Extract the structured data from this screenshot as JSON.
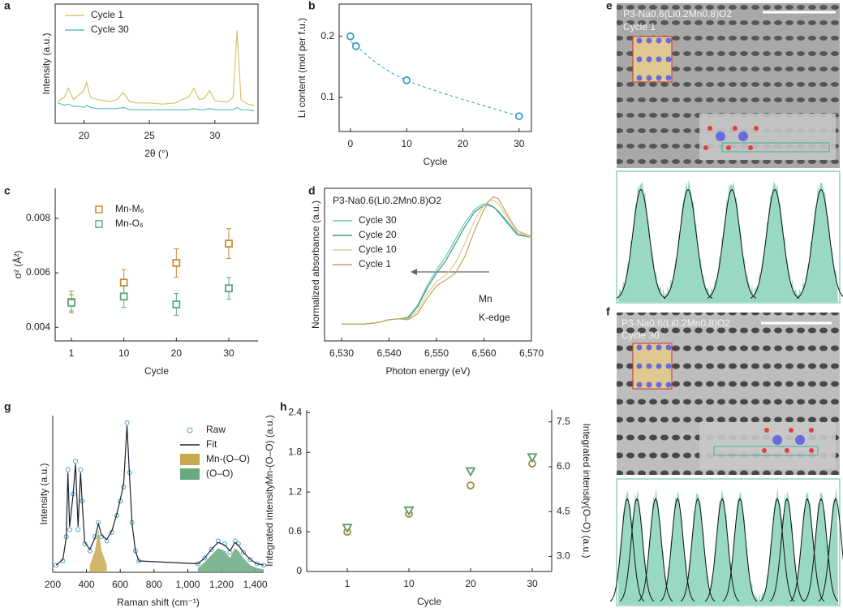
{
  "chart_data": [
    {
      "panel": "a",
      "type": "line",
      "xlabel": "2θ (°)",
      "ylabel": "Intensity (a.u.)",
      "legend": "upper left",
      "x": [
        18,
        18.5,
        18.8,
        19.2,
        19.6,
        20.0,
        20.2,
        20.5,
        21,
        21.5,
        22,
        22.5,
        23,
        23.5,
        24,
        25,
        26,
        27,
        27.5,
        28,
        28.4,
        28.8,
        29.2,
        29.6,
        30,
        30.5,
        31,
        31.4,
        31.7,
        32,
        32.5,
        33
      ],
      "xlim": [
        17.8,
        33.3
      ],
      "xticks": [
        20,
        25,
        30
      ],
      "ylim": [
        0,
        10.5
      ],
      "series": [
        {
          "name": "Cycle 1",
          "color": "#d8c36a",
          "style": "line",
          "values": [
            1.9,
            2.3,
            3.1,
            2.1,
            2.5,
            2.9,
            3.6,
            2.3,
            2.1,
            2.0,
            1.9,
            2.1,
            2.7,
            1.9,
            1.8,
            1.8,
            1.7,
            1.8,
            2.1,
            2.3,
            3.1,
            2.1,
            2.2,
            2.9,
            2.0,
            1.9,
            1.9,
            2.3,
            8.2,
            2.1,
            1.7,
            1.6
          ]
        },
        {
          "name": "Cycle 30",
          "color": "#5cc0b4",
          "style": "line",
          "values": [
            1.8,
            1.6,
            1.7,
            1.5,
            1.5,
            1.4,
            1.6,
            1.4,
            1.3,
            1.3,
            1.3,
            1.3,
            1.4,
            1.2,
            1.2,
            1.2,
            1.2,
            1.2,
            1.2,
            1.2,
            1.3,
            1.2,
            1.2,
            1.3,
            1.2,
            1.2,
            1.2,
            1.2,
            1.4,
            1.2,
            1.2,
            1.1
          ]
        }
      ]
    },
    {
      "panel": "b",
      "type": "scatter",
      "xlabel": "Cycle",
      "ylabel": "Li content (mol per f.u.)",
      "trendline": "dashed",
      "x": [
        0,
        1,
        10,
        30
      ],
      "xlim": [
        -2,
        32.2
      ],
      "xticks": [
        0,
        10,
        20,
        30
      ],
      "ylim": [
        0.044,
        0.253
      ],
      "yticks": [
        0.1,
        0.2
      ],
      "series": [
        {
          "color": "#3aa0c8",
          "style": "markers",
          "marker": "circle",
          "values": [
            0.2,
            0.184,
            0.128,
            0.069
          ]
        }
      ]
    },
    {
      "panel": "c",
      "type": "scatter",
      "xlabel": "Cycle",
      "ylabel": "σ² (Å²)",
      "legend": "upper left",
      "categories": [
        "1",
        "10",
        "20",
        "30"
      ],
      "ylim": [
        0.0035,
        0.0091
      ],
      "yticks": [
        0.004,
        0.006,
        0.008
      ],
      "series": [
        {
          "name": "Mn-M₆",
          "color": "#d08a30",
          "style": "markers",
          "marker": "square",
          "values": [
            0.00493,
            0.00564,
            0.00636,
            0.00707
          ],
          "errors": [
            0.0004,
            0.00048,
            0.00052,
            0.00055
          ]
        },
        {
          "name": "Mn-O₆",
          "color": "#5aaa78",
          "style": "markers",
          "marker": "square",
          "values": [
            0.0049,
            0.00513,
            0.00484,
            0.00543
          ],
          "errors": [
            0.0003,
            0.0004,
            0.0004,
            0.0004
          ]
        }
      ]
    },
    {
      "panel": "d",
      "type": "line",
      "title": "P3-Na0.6(Li0.2Mn0.8)O2",
      "xlabel": "Photon energy (eV)",
      "ylabel": "Normalized absorbance (a.u.)",
      "legend": "upper left",
      "annotations": [
        "Mn",
        "K-edge"
      ],
      "x": [
        6530,
        6535,
        6538,
        6540,
        6542,
        6544,
        6546,
        6548,
        6550,
        6552,
        6554,
        6556,
        6558,
        6560,
        6561,
        6562,
        6563,
        6565,
        6567,
        6570
      ],
      "xlim": [
        6526.4,
        6570
      ],
      "xticks": [
        {
          "value": 6530,
          "label": "6,530"
        },
        {
          "value": 6540,
          "label": "6,540"
        },
        {
          "value": 6550,
          "label": "6,550"
        },
        {
          "value": 6560,
          "label": "6,560"
        },
        {
          "value": 6570,
          "label": "6,570"
        }
      ],
      "ylim": [
        -0.2,
        1.6
      ],
      "series": [
        {
          "name": "Cycle 30",
          "color": "#6cc8c0",
          "style": "line",
          "values": [
            0,
            0,
            0.02,
            0.05,
            0.06,
            0.08,
            0.22,
            0.45,
            0.64,
            0.8,
            1.0,
            1.2,
            1.35,
            1.42,
            1.41,
            1.38,
            1.32,
            1.18,
            1.05,
            1.02
          ]
        },
        {
          "name": "Cycle 20",
          "color": "#3a9a7a",
          "style": "line",
          "values": [
            0,
            0,
            0.02,
            0.05,
            0.06,
            0.07,
            0.2,
            0.42,
            0.6,
            0.75,
            0.95,
            1.15,
            1.32,
            1.4,
            1.4,
            1.38,
            1.33,
            1.2,
            1.06,
            1.02
          ]
        },
        {
          "name": "Cycle 10",
          "color": "#e2cc96",
          "style": "line",
          "values": [
            0,
            0,
            0.02,
            0.05,
            0.06,
            0.06,
            0.15,
            0.35,
            0.5,
            0.58,
            0.72,
            0.95,
            1.22,
            1.4,
            1.45,
            1.46,
            1.42,
            1.25,
            1.08,
            1.02
          ]
        },
        {
          "name": "Cycle 1",
          "color": "#c8a060",
          "style": "line",
          "values": [
            0,
            0,
            0.02,
            0.05,
            0.06,
            0.05,
            0.12,
            0.3,
            0.45,
            0.52,
            0.6,
            0.8,
            1.1,
            1.35,
            1.45,
            1.5,
            1.48,
            1.28,
            1.1,
            1.03
          ]
        }
      ]
    },
    {
      "panel": "g",
      "type": "line",
      "xlabel": "Raman shift (cm⁻¹)",
      "ylabel": "Intensity (a.u.)",
      "legend": "upper right",
      "x": [
        220,
        260,
        280,
        290,
        300,
        320,
        335,
        350,
        365,
        375,
        390,
        420,
        450,
        470,
        490,
        520,
        550,
        580,
        600,
        620,
        640,
        655,
        670,
        690,
        710,
        1060,
        1100,
        1140,
        1180,
        1220,
        1250,
        1280,
        1300,
        1330,
        1370,
        1410,
        1450
      ],
      "xlim": [
        200,
        1450
      ],
      "xticks": [
        200,
        400,
        600,
        800,
        {
          "value": 1000,
          "label": "1,000"
        },
        {
          "value": 1200,
          "label": "1,200"
        },
        {
          "value": 1400,
          "label": "1,400"
        }
      ],
      "ylim": [
        0,
        1.1
      ],
      "series": [
        {
          "name": "Raw",
          "color": "#4aa0c8",
          "style": "markers",
          "marker": "circle",
          "values": [
            0.05,
            0.08,
            0.25,
            0.72,
            0.3,
            0.55,
            0.78,
            0.3,
            0.72,
            0.5,
            0.2,
            0.15,
            0.25,
            0.35,
            0.25,
            0.22,
            0.28,
            0.4,
            0.5,
            0.6,
            1.05,
            0.7,
            0.35,
            0.15,
            0.08,
            0.06,
            0.1,
            0.16,
            0.22,
            0.2,
            0.14,
            0.22,
            0.2,
            0.14,
            0.09,
            0.06,
            0.05
          ]
        },
        {
          "name": "Fit",
          "color": "#1a2030",
          "style": "line",
          "values": [
            0.05,
            0.09,
            0.24,
            0.7,
            0.32,
            0.54,
            0.76,
            0.32,
            0.7,
            0.48,
            0.21,
            0.16,
            0.24,
            0.34,
            0.26,
            0.23,
            0.29,
            0.41,
            0.51,
            0.62,
            1.03,
            0.68,
            0.34,
            0.15,
            0.08,
            0.06,
            0.1,
            0.16,
            0.21,
            0.19,
            0.15,
            0.21,
            0.19,
            0.14,
            0.09,
            0.06,
            0.05
          ]
        },
        {
          "name": "Mn-(O–O)",
          "color": "#c8a850",
          "style": "area",
          "values": [
            null,
            null,
            null,
            null,
            null,
            null,
            null,
            null,
            null,
            null,
            null,
            0.05,
            0.15,
            0.3,
            0.15,
            0.05,
            null,
            null,
            null,
            null,
            null,
            null,
            null,
            null,
            null,
            null,
            null,
            null,
            null,
            null,
            null,
            null,
            null,
            null,
            null,
            null,
            null
          ]
        },
        {
          "name": "(O–O)",
          "color": "#6aaa80",
          "style": "area",
          "values": [
            null,
            null,
            null,
            null,
            null,
            null,
            null,
            null,
            null,
            null,
            null,
            null,
            null,
            null,
            null,
            null,
            null,
            null,
            null,
            null,
            null,
            null,
            null,
            null,
            null,
            0.03,
            0.07,
            0.12,
            0.17,
            0.15,
            0.1,
            0.17,
            0.15,
            0.1,
            0.05,
            0.03,
            0.02
          ]
        }
      ]
    },
    {
      "panel": "h",
      "type": "scatter",
      "xlabel": "Cycle",
      "ylabel": "Integrated intensityMn-(O–O) (a.u.)",
      "y2label": "Integrated intensity(O–O) (a.u.)",
      "categories": [
        "1",
        "10",
        "20",
        "30"
      ],
      "ylim": [
        0,
        2.44
      ],
      "yticks": [
        0,
        0.6,
        1.2,
        1.8,
        2.4
      ],
      "y2lim": [
        2.5,
        7.9
      ],
      "y2ticks": [
        {
          "value": 3.0,
          "label": "3.0"
        },
        {
          "value": 4.5,
          "label": "4.5"
        },
        {
          "value": 6.0,
          "label": "6.0"
        },
        {
          "value": 7.5,
          "label": "7.5"
        }
      ],
      "series": [
        {
          "color": "#a8883a",
          "style": "markers",
          "marker": "circle",
          "values": [
            0.6,
            0.87,
            1.3,
            1.63
          ]
        },
        {
          "color": "#5a9a68",
          "style": "markers",
          "marker": "triangle",
          "axis": "y2",
          "values": [
            3.96,
            4.54,
            5.85,
            6.32
          ]
        }
      ]
    }
  ],
  "images": [
    {
      "panel": "e",
      "title": "P3-Na0.6(Li0.2Mn0.8)O2",
      "subtitle": "Cycle 1"
    },
    {
      "panel": "f",
      "title": "P3-Na0.6(Li0.2Mn0.8)O2",
      "subtitle": "Cycle 30"
    }
  ]
}
